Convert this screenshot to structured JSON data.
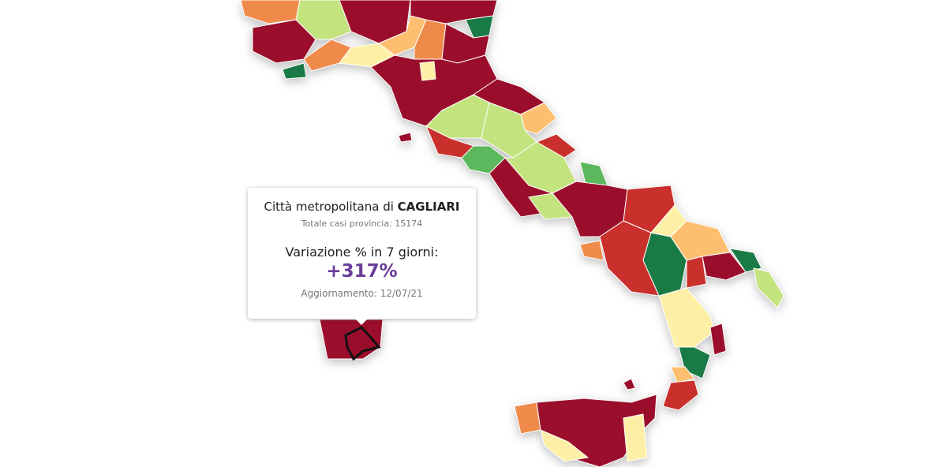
{
  "tooltip": {
    "title_prefix": "Città metropolitana di",
    "province": "CAGLIARI",
    "total_label": "Totale casi provincia:",
    "total_cases": 15174,
    "change_label": "Variazione % in 7 giorni:",
    "change": "+317%",
    "updated": "Aggiornamento: 12/07/21"
  }
}
